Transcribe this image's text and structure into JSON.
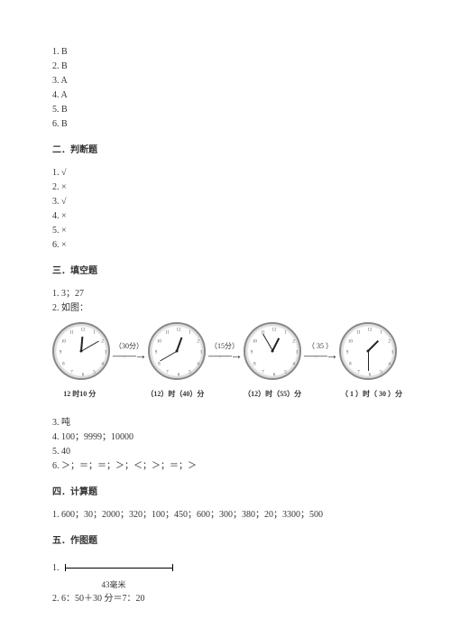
{
  "section1": {
    "answers": [
      "1. B",
      "2. B",
      "3. A",
      "4. A",
      "5. B",
      "6. B"
    ]
  },
  "section2": {
    "title": "二．判断题",
    "answers": [
      "1. √",
      "2. ×",
      "3. √",
      "4. ×",
      "5. ×",
      "6. ×"
    ]
  },
  "section3": {
    "title": "三．填空题",
    "before_img": [
      "1. 3；27",
      "2. 如图："
    ],
    "clocks": [
      {
        "hour_angle": 5,
        "minute_angle": 60,
        "caption": "12 时10 分"
      },
      {
        "hour_angle": 20,
        "minute_angle": 240,
        "caption": "（12）时（40）分"
      },
      {
        "hour_angle": 27,
        "minute_angle": 330,
        "caption": "（12）时（55）分"
      },
      {
        "hour_angle": 45,
        "minute_angle": 180,
        "caption": "（ 1 ）时（ 30 ）分"
      }
    ],
    "arrows": [
      "（30分）",
      "（15分）",
      "（ 35 ）"
    ],
    "clock_numbers": [
      "12",
      "1",
      "2",
      "3",
      "4",
      "5",
      "6",
      "7",
      "8",
      "9",
      "10",
      "11"
    ],
    "after_img": [
      "3. 吨",
      "4. 100；9999；10000",
      "5. 40",
      "6. ＞；＝；＝；＞；＜；＞；＝；＞"
    ]
  },
  "section4": {
    "title": "四．计算题",
    "answers": [
      "1. 600；30；2000；320；100；450；600；300；380；20；3300；500"
    ]
  },
  "section5": {
    "title": "五．作图题",
    "item1_prefix": "1.",
    "ruler_label": "43毫米",
    "item2": "2. 6：50＋30 分＝7：20"
  },
  "style": {
    "clock_size": 64,
    "clock_bg": "#eeeeee",
    "clock_border": "#888888",
    "face_bg": "#ffffff"
  }
}
